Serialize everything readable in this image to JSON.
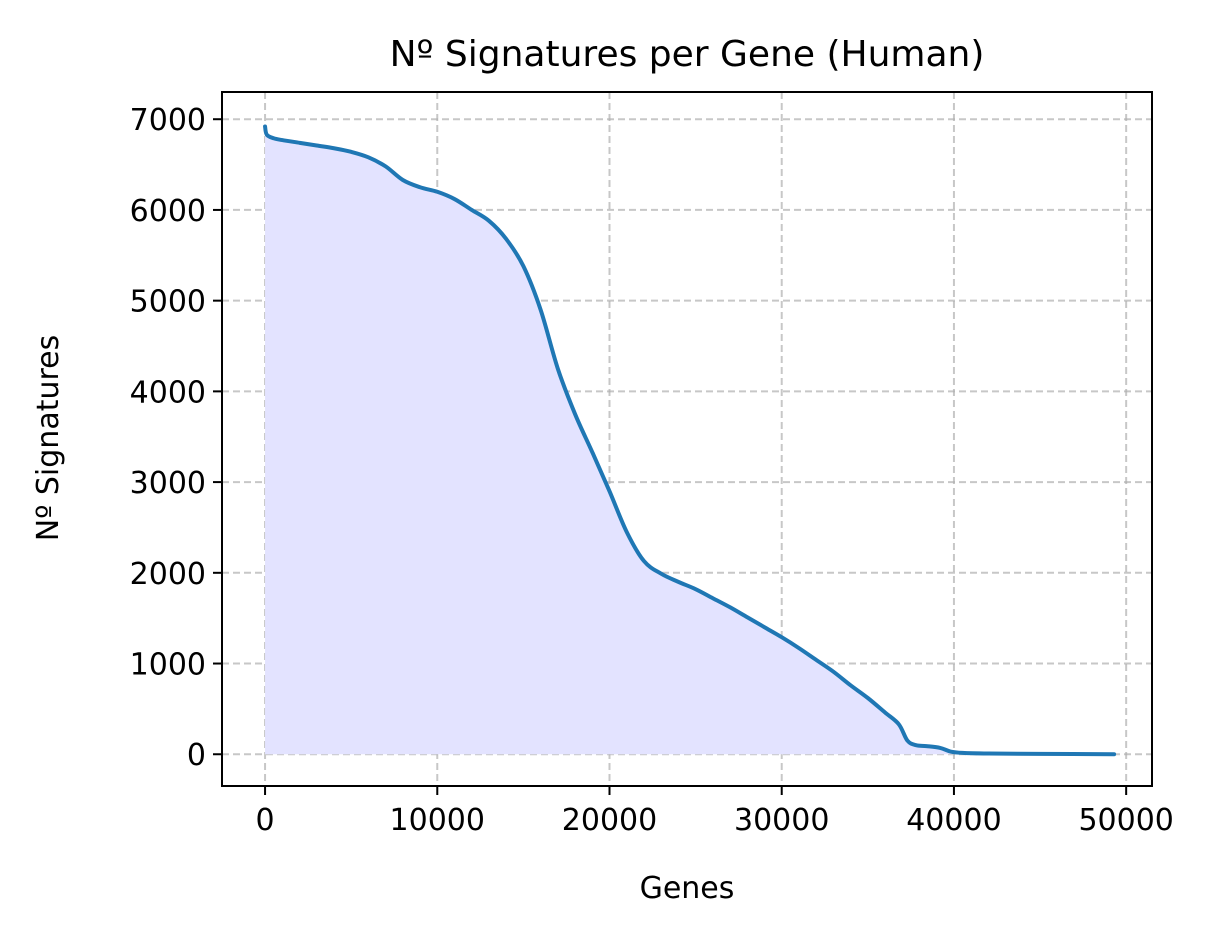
{
  "chart_data": {
    "type": "area",
    "title": "Nº Signatures per Gene (Human)",
    "xlabel": "Genes",
    "ylabel": "Nº Signatures",
    "xlim": [
      -2500,
      51500
    ],
    "ylim": [
      -350,
      7300
    ],
    "xticks": [
      0,
      10000,
      20000,
      30000,
      40000,
      50000
    ],
    "xtick_labels": [
      "0",
      "10000",
      "20000",
      "30000",
      "40000",
      "50000"
    ],
    "yticks": [
      0,
      1000,
      2000,
      3000,
      4000,
      5000,
      6000,
      7000
    ],
    "ytick_labels": [
      "0",
      "1000",
      "2000",
      "3000",
      "4000",
      "5000",
      "6000",
      "7000"
    ],
    "grid": true,
    "series": [
      {
        "color": "#1f77b4",
        "fill_color": "#e3e3ff",
        "x": [
          0,
          100,
          500,
          1000,
          2000,
          3000,
          4000,
          5000,
          6000,
          7000,
          8000,
          9000,
          10000,
          11000,
          12000,
          13000,
          14000,
          15000,
          16000,
          17000,
          18000,
          19000,
          20000,
          21000,
          22000,
          23000,
          24000,
          25000,
          26000,
          27000,
          28000,
          29000,
          30000,
          31000,
          32000,
          33000,
          34000,
          35000,
          36000,
          36800,
          37300,
          37800,
          38400,
          39200,
          39800,
          40500,
          42000,
          45000,
          49300
        ],
        "y": [
          6920,
          6830,
          6790,
          6770,
          6740,
          6710,
          6680,
          6640,
          6580,
          6480,
          6330,
          6250,
          6200,
          6120,
          6000,
          5880,
          5680,
          5380,
          4900,
          4250,
          3750,
          3330,
          2900,
          2450,
          2130,
          1990,
          1900,
          1820,
          1720,
          1620,
          1510,
          1400,
          1290,
          1170,
          1040,
          910,
          760,
          620,
          460,
          330,
          150,
          100,
          90,
          70,
          30,
          15,
          8,
          4,
          0
        ]
      }
    ]
  }
}
